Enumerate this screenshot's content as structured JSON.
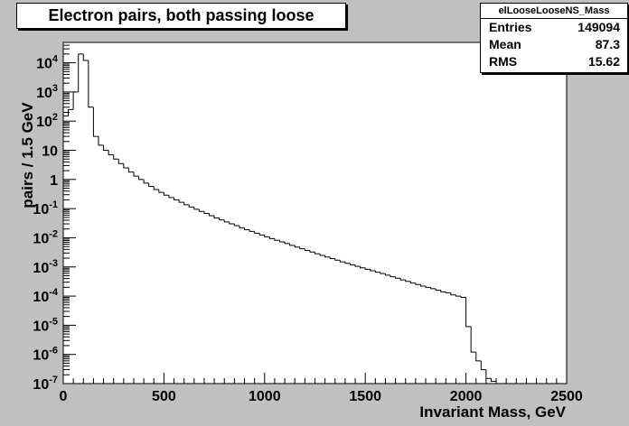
{
  "chart_data": {
    "type": "histogram",
    "title": "Electron pairs, both passing loose",
    "xlabel": "Invariant Mass, GeV",
    "ylabel": "pairs / 1.5 GeV",
    "xlim": [
      0,
      2500
    ],
    "ylim": [
      1e-07,
      50000
    ],
    "yscale": "log",
    "x_ticks": [
      "0",
      "500",
      "1000",
      "1500",
      "2000",
      "2500"
    ],
    "y_ticks": [
      {
        "value": 1e-07,
        "base": "10",
        "exp": "-7"
      },
      {
        "value": 1e-06,
        "base": "10",
        "exp": "-6"
      },
      {
        "value": 1e-05,
        "base": "10",
        "exp": "-5"
      },
      {
        "value": 0.0001,
        "base": "10",
        "exp": "-4"
      },
      {
        "value": 0.001,
        "base": "10",
        "exp": "-3"
      },
      {
        "value": 0.01,
        "base": "10",
        "exp": "-2"
      },
      {
        "value": 0.1,
        "base": "10",
        "exp": "-1"
      },
      {
        "value": 1,
        "base": "1",
        "exp": ""
      },
      {
        "value": 10,
        "base": "10",
        "exp": ""
      },
      {
        "value": 100,
        "base": "10",
        "exp": "2"
      },
      {
        "value": 1000,
        "base": "10",
        "exp": "3"
      },
      {
        "value": 10000,
        "base": "10",
        "exp": "4"
      }
    ],
    "bin_width": 25,
    "bin_start": 0,
    "values": [
      150,
      250,
      1000,
      20000,
      12000,
      300,
      30,
      15,
      10,
      7,
      5,
      3.5,
      2.5,
      1.8,
      1.3,
      1,
      0.75,
      0.58,
      0.45,
      0.36,
      0.29,
      0.24,
      0.2,
      0.165,
      0.135,
      0.113,
      0.095,
      0.08,
      0.068,
      0.057,
      0.048,
      0.041,
      0.035,
      0.03,
      0.026,
      0.022,
      0.019,
      0.0165,
      0.0143,
      0.0124,
      0.0108,
      0.0094,
      0.0082,
      0.0072,
      0.0063,
      0.0055,
      0.0048,
      0.0042,
      0.00368,
      0.00323,
      0.00283,
      0.00249,
      0.00219,
      0.00193,
      0.0017,
      0.0015,
      0.00133,
      0.00118,
      0.00105,
      0.00093,
      0.00083,
      0.00074,
      0.00066,
      0.00059,
      0.00052,
      0.00046,
      0.00041,
      0.00036,
      0.00032,
      0.00028,
      0.00025,
      0.00022,
      0.0002,
      0.00018,
      0.00016,
      0.00014,
      0.00013,
      0.00011,
      0.0001,
      9e-05,
      9e-06,
      1.2e-06,
      6e-07,
      3e-07,
      1.5e-07,
      1.2e-07,
      1e-07,
      0,
      0,
      0,
      0,
      0,
      1e-07,
      0,
      0,
      1e-07
    ],
    "stats": {
      "name": "elLooseLooseNS_Mass",
      "rows": [
        {
          "label": "Entries",
          "value": "149094"
        },
        {
          "label": "Mean",
          "value": "87.3"
        },
        {
          "label": "RMS",
          "value": "15.62"
        }
      ]
    },
    "grid": false,
    "legend": "none"
  }
}
